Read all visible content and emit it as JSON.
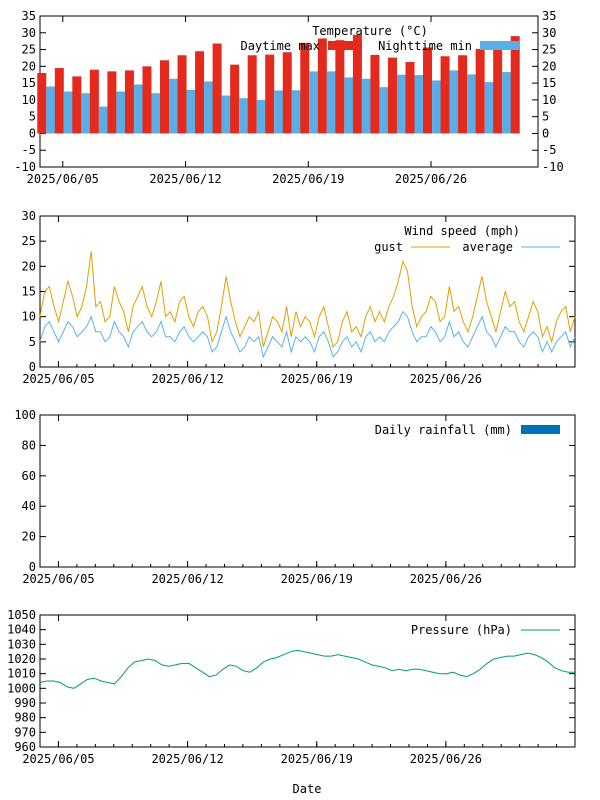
{
  "colors": {
    "day_max": "#e32a1c",
    "night_min": "#5aaee6",
    "gust": "#e0a000",
    "avg": "#56b4e9",
    "rain": "#0070b8",
    "pressure": "#009e73"
  },
  "xlabel": "Date",
  "date_ticks": [
    "2025/06/05",
    "2025/06/12",
    "2025/06/19",
    "2025/06/26"
  ],
  "chart_data": [
    {
      "type": "bar",
      "title": "Temperature (°C)",
      "ylim": [
        -10,
        35
      ],
      "yticks": [
        -10,
        -5,
        0,
        5,
        10,
        15,
        20,
        25,
        30,
        35
      ],
      "x": [
        "2025/06/04",
        "2025/06/05",
        "2025/06/06",
        "2025/06/07",
        "2025/06/08",
        "2025/06/09",
        "2025/06/10",
        "2025/06/11",
        "2025/06/12",
        "2025/06/13",
        "2025/06/14",
        "2025/06/15",
        "2025/06/16",
        "2025/06/17",
        "2025/06/18",
        "2025/06/19",
        "2025/06/20",
        "2025/06/21",
        "2025/06/22",
        "2025/06/23",
        "2025/06/24",
        "2025/06/25",
        "2025/06/26",
        "2025/06/27",
        "2025/06/28",
        "2025/06/29",
        "2025/06/30",
        "2025/07/01"
      ],
      "series": [
        {
          "name": "Daytime max",
          "values": [
            18,
            19.5,
            17,
            19,
            18.5,
            18.8,
            20,
            21.8,
            23.3,
            24.5,
            26.8,
            20.5,
            23.3,
            23.5,
            24.2,
            27,
            28.3,
            27.8,
            29.4,
            23.4,
            22.6,
            21.3,
            25.6,
            23,
            23.3,
            25.2,
            25,
            29
          ]
        },
        {
          "name": "Nighttime min",
          "values": [
            14,
            12.5,
            12,
            8,
            12.5,
            14.6,
            12,
            16.3,
            13,
            15.5,
            11.3,
            10.5,
            10,
            12.8,
            12.9,
            18.5,
            18.5,
            16.7,
            16.3,
            13.8,
            17.5,
            17.4,
            15.8,
            18.8,
            17.6,
            15.3,
            18.3,
            0
          ]
        }
      ]
    },
    {
      "type": "line",
      "title": "Wind speed (mph)",
      "ylim": [
        0,
        30
      ],
      "yticks": [
        0,
        5,
        10,
        15,
        20,
        25,
        30
      ],
      "x_start": "2025/06/04",
      "x_end": "2025/07/03",
      "series": [
        {
          "name": "gust",
          "values": [
            10,
            15,
            16,
            12,
            9,
            13,
            17,
            14,
            10,
            12,
            16,
            23,
            12,
            13,
            9,
            10,
            16,
            13,
            11,
            7,
            12,
            14,
            16,
            12,
            10,
            13,
            17,
            10,
            11,
            9,
            13,
            14,
            10,
            8,
            11,
            12,
            10,
            5,
            7,
            12,
            18,
            13,
            9,
            6,
            8,
            10,
            9,
            11,
            4,
            7,
            10,
            9,
            7,
            12,
            6,
            11,
            8,
            10,
            9,
            6,
            10,
            12,
            8,
            4,
            5,
            9,
            11,
            7,
            8,
            6,
            10,
            12,
            9,
            11,
            9,
            12,
            14,
            17,
            21,
            19,
            12,
            8,
            10,
            11,
            14,
            13,
            9,
            10,
            16,
            11,
            12,
            9,
            7,
            10,
            14,
            18,
            13,
            10,
            7,
            11,
            15,
            12,
            13,
            9,
            7,
            10,
            13,
            11,
            6,
            8,
            5,
            9,
            11,
            12,
            7,
            10
          ]
        },
        {
          "name": "average",
          "values": [
            5,
            8,
            9,
            7,
            5,
            7,
            9,
            8,
            6,
            7,
            8,
            10,
            7,
            7,
            5,
            6,
            9,
            7,
            6,
            4,
            7,
            8,
            9,
            7,
            6,
            7,
            9,
            6,
            6,
            5,
            7,
            8,
            6,
            5,
            6,
            7,
            6,
            3,
            4,
            7,
            10,
            7,
            5,
            3,
            4,
            6,
            5,
            6,
            2,
            4,
            6,
            5,
            4,
            7,
            3,
            6,
            5,
            6,
            5,
            3,
            6,
            7,
            5,
            2,
            3,
            5,
            6,
            4,
            5,
            3,
            6,
            7,
            5,
            6,
            5,
            7,
            8,
            9,
            11,
            10,
            7,
            5,
            6,
            6,
            8,
            7,
            5,
            6,
            9,
            6,
            7,
            5,
            4,
            6,
            8,
            10,
            7,
            6,
            4,
            6,
            8,
            7,
            7,
            5,
            4,
            6,
            7,
            6,
            3,
            5,
            3,
            5,
            6,
            7,
            4,
            6
          ]
        }
      ]
    },
    {
      "type": "bar",
      "title": "Daily rainfall (mm)",
      "ylim": [
        0,
        100
      ],
      "yticks": [
        0,
        20,
        40,
        60,
        80,
        100
      ],
      "series": [
        {
          "name": "Daily rainfall (mm)",
          "values": []
        }
      ]
    },
    {
      "type": "line",
      "title": "Pressure (hPa)",
      "ylim": [
        960,
        1050
      ],
      "yticks": [
        960,
        970,
        980,
        990,
        1000,
        1010,
        1020,
        1030,
        1040,
        1050
      ],
      "x_start": "2025/06/04",
      "x_end": "2025/07/03",
      "series": [
        {
          "name": "Pressure (hPa)",
          "values": [
            1004,
            1005,
            1005,
            1004,
            1001,
            1000,
            1003,
            1006,
            1007,
            1005,
            1004,
            1003,
            1008,
            1014,
            1018,
            1019,
            1020,
            1019,
            1016,
            1015,
            1016,
            1017,
            1017,
            1014,
            1011,
            1008,
            1009,
            1013,
            1016,
            1015,
            1012,
            1011,
            1014,
            1018,
            1020,
            1021,
            1023,
            1025,
            1026,
            1025,
            1024,
            1023,
            1022,
            1022,
            1023,
            1022,
            1021,
            1020,
            1018,
            1016,
            1015,
            1014,
            1012,
            1013,
            1012,
            1013,
            1013,
            1012,
            1011,
            1010,
            1010,
            1011,
            1009,
            1008,
            1010,
            1013,
            1017,
            1020,
            1021,
            1022,
            1022,
            1023,
            1024,
            1023,
            1021,
            1018,
            1014,
            1012,
            1011,
            1011
          ]
        }
      ]
    }
  ]
}
